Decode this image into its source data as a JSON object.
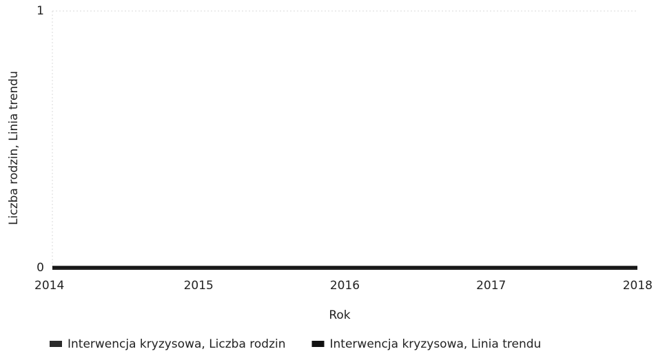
{
  "chart_data": {
    "type": "line",
    "x": [
      2014,
      2015,
      2016,
      2017,
      2018
    ],
    "series": [
      {
        "name": "Interwencja kryzysowa, Liczba rodzin",
        "color": "#2b2b2b",
        "values": [
          0,
          0,
          0,
          0,
          0
        ]
      },
      {
        "name": "Interwencja kryzysowa, Linia trendu",
        "color": "#111111",
        "values": [
          0,
          0,
          0,
          0,
          0
        ]
      }
    ],
    "xlabel": "Rok",
    "ylabel": "Liczba rodzin, Linia trendu",
    "xlim": [
      2014,
      2018
    ],
    "xticks": [
      2014,
      2015,
      2016,
      2017,
      2018
    ],
    "ylim": [
      0,
      1
    ],
    "yticks": [
      0,
      1
    ],
    "grid": true,
    "legend": "bottom"
  }
}
